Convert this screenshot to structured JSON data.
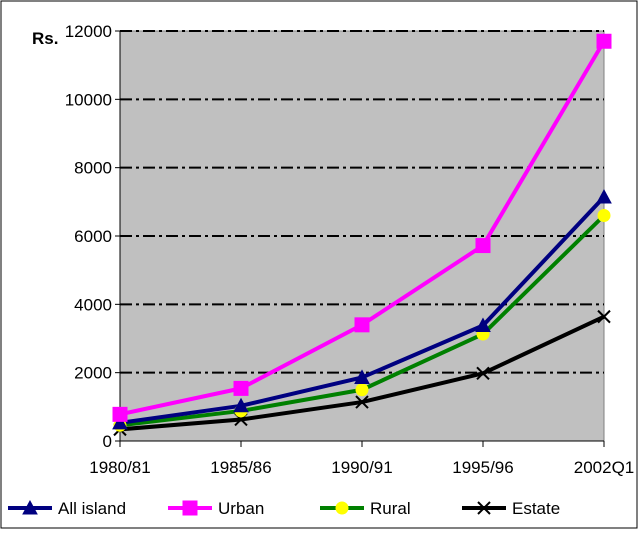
{
  "chart_data": {
    "type": "line",
    "title": "",
    "ylabel": "Rs.",
    "xlabel": "",
    "categories": [
      "1980/81",
      "1985/86",
      "1990/91",
      "1995/96",
      "2002Q1"
    ],
    "ylim": [
      0,
      12000
    ],
    "yticks": [
      0,
      2000,
      4000,
      6000,
      8000,
      10000,
      12000
    ],
    "grid": "horizontal dash-dot",
    "legend_position": "bottom",
    "background": "#c0c0c0",
    "series": [
      {
        "name": "All island",
        "values": [
          530,
          1030,
          1860,
          3380,
          7140
        ],
        "color": "#000080",
        "marker": "triangle"
      },
      {
        "name": "Urban",
        "values": [
          780,
          1540,
          3400,
          5720,
          11700
        ],
        "color": "#ff00ff",
        "marker": "square"
      },
      {
        "name": "Rural",
        "values": [
          460,
          880,
          1500,
          3130,
          6600
        ],
        "color": "#008000",
        "marker": "circle",
        "marker_color": "#ffff00"
      },
      {
        "name": "Estate",
        "values": [
          340,
          630,
          1140,
          1980,
          3640
        ],
        "color": "#000000",
        "marker": "x"
      }
    ]
  }
}
